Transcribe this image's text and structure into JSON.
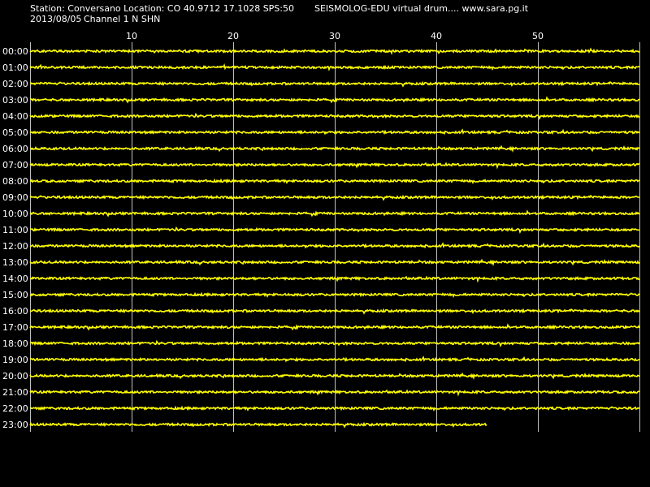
{
  "header": {
    "station_line": "Station: Conversano Location: CO 40.9712 17.1028 SPS:50",
    "brand_line": "SEISMOLOG-EDU virtual drum.... www.sara.pg.it",
    "date": "2013/08/05",
    "channel": "Channel 1 N SHN"
  },
  "colors": {
    "background": "#000000",
    "trace": "#ffff00",
    "grid": "#c0c0c0",
    "text": "#ffffff"
  },
  "chart_data": {
    "type": "line",
    "title": "",
    "xlabel": "",
    "ylabel": "",
    "x_unit_ticks": [
      10,
      20,
      30,
      40,
      50
    ],
    "xlim": [
      0,
      60
    ],
    "grid": true,
    "rows": [
      {
        "label": "00:00",
        "end_minute": 60
      },
      {
        "label": "01:00",
        "end_minute": 60
      },
      {
        "label": "02:00",
        "end_minute": 60
      },
      {
        "label": "03:00",
        "end_minute": 60
      },
      {
        "label": "04:00",
        "end_minute": 60
      },
      {
        "label": "05:00",
        "end_minute": 60
      },
      {
        "label": "06:00",
        "end_minute": 60
      },
      {
        "label": "07:00",
        "end_minute": 60
      },
      {
        "label": "08:00",
        "end_minute": 60
      },
      {
        "label": "09:00",
        "end_minute": 60
      },
      {
        "label": "10:00",
        "end_minute": 60
      },
      {
        "label": "11:00",
        "end_minute": 60
      },
      {
        "label": "12:00",
        "end_minute": 60
      },
      {
        "label": "13:00",
        "end_minute": 60
      },
      {
        "label": "14:00",
        "end_minute": 60
      },
      {
        "label": "15:00",
        "end_minute": 60
      },
      {
        "label": "16:00",
        "end_minute": 60
      },
      {
        "label": "17:00",
        "end_minute": 60
      },
      {
        "label": "18:00",
        "end_minute": 60
      },
      {
        "label": "19:00",
        "end_minute": 60
      },
      {
        "label": "20:00",
        "end_minute": 60
      },
      {
        "label": "21:00",
        "end_minute": 60
      },
      {
        "label": "22:00",
        "end_minute": 60
      },
      {
        "label": "23:00",
        "end_minute": 45
      }
    ]
  }
}
